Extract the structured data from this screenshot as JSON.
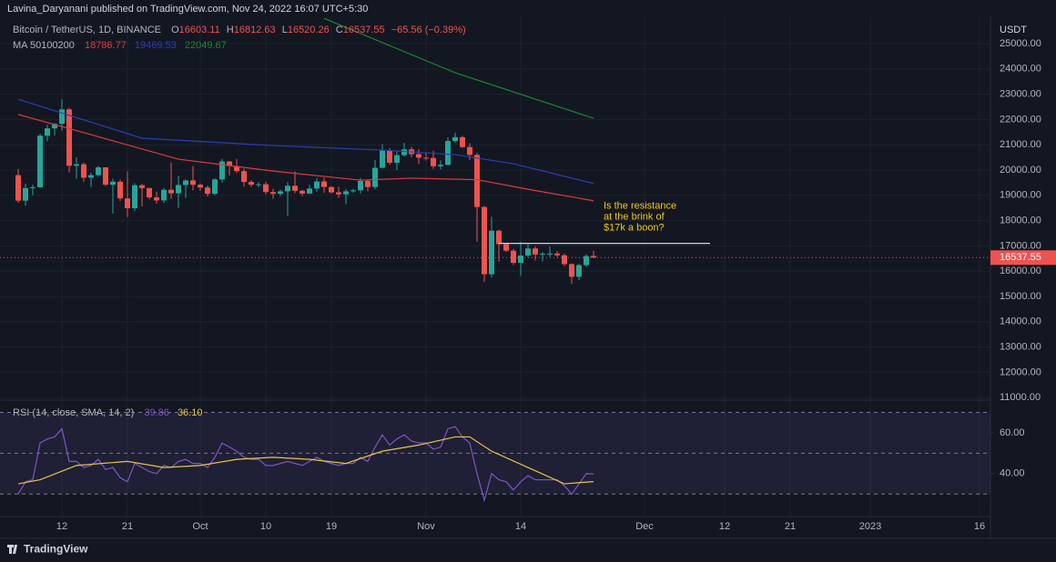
{
  "header": {
    "published": "Lavina_Daryanani published on TradingView.com, Nov 24, 2022 16:07 UTC+5:30"
  },
  "footer": {
    "brand": "TradingView"
  },
  "chart_data": [
    {
      "type": "candlestick",
      "title": "Bitcoin / TetherUS, 1D, BINANCE",
      "ohlc_labels": [
        "O",
        "H",
        "L",
        "C"
      ],
      "change": "−65.56 (−0.39%)",
      "axis_unit": "USDT",
      "up_color": "#26a69a",
      "down_color": "#ef5350",
      "x": [
        0,
        1,
        2,
        3,
        4,
        5,
        6,
        7,
        8,
        9,
        10,
        11,
        12,
        13,
        14,
        15,
        16,
        17,
        18,
        19,
        20,
        21,
        22,
        23,
        24,
        25,
        26,
        27,
        28,
        29,
        30,
        31,
        32,
        33,
        34,
        35,
        36,
        37,
        38,
        39,
        40,
        41,
        42,
        43,
        44,
        45,
        46,
        47,
        48,
        49,
        50,
        51,
        52,
        53,
        54,
        55,
        56,
        57,
        58,
        59,
        60,
        61,
        62,
        63,
        64,
        65,
        66,
        67,
        68,
        69,
        70,
        71,
        72,
        73,
        74,
        75,
        76,
        77,
        78,
        79
      ],
      "open": [
        19800,
        18790,
        19290,
        19320,
        21360,
        21650,
        21830,
        22400,
        20170,
        20230,
        19700,
        19800,
        20110,
        19420,
        19540,
        18880,
        18490,
        19400,
        19290,
        18920,
        18800,
        19220,
        19080,
        19410,
        19590,
        19420,
        19310,
        19060,
        19630,
        20340,
        20160,
        19960,
        19530,
        19420,
        19440,
        19130,
        19060,
        19160,
        19380,
        19180,
        19070,
        19270,
        19550,
        19330,
        19120,
        19040,
        19160,
        19200,
        19570,
        19330,
        20090,
        20770,
        20290,
        20590,
        20820,
        20630,
        20490,
        20480,
        20150,
        20210,
        21150,
        21300,
        20910,
        20600,
        18540,
        15880,
        17600,
        17070,
        16810,
        16330,
        16620,
        16900,
        16660,
        16690,
        16700,
        16630,
        16280,
        15780,
        16240,
        16603.11
      ],
      "high": [
        20050,
        19460,
        19420,
        21440,
        21790,
        21860,
        22800,
        22470,
        20510,
        20300,
        19890,
        20160,
        20110,
        19660,
        19620,
        19950,
        19480,
        19460,
        19290,
        19150,
        19290,
        20300,
        19770,
        19630,
        20160,
        19470,
        19390,
        19680,
        20450,
        20360,
        20440,
        20060,
        19600,
        19520,
        19530,
        19260,
        19230,
        19520,
        19950,
        19220,
        19420,
        19690,
        19700,
        19360,
        19350,
        19250,
        19260,
        19690,
        19600,
        20400,
        21020,
        20870,
        20750,
        21080,
        20920,
        20830,
        20670,
        20770,
        20380,
        21290,
        21480,
        21360,
        21060,
        20680,
        18580,
        18150,
        17650,
        17070,
        16880,
        17170,
        17120,
        16990,
        16760,
        16980,
        16800,
        16700,
        16310,
        16290,
        16670,
        16812.63
      ],
      "low": [
        18700,
        18590,
        19000,
        19300,
        21140,
        21360,
        21560,
        19900,
        19660,
        19530,
        19330,
        19740,
        19370,
        18280,
        18780,
        18140,
        18380,
        18560,
        18840,
        18670,
        18700,
        18860,
        18490,
        18900,
        19200,
        19180,
        18950,
        19000,
        19500,
        19790,
        19870,
        19350,
        19330,
        19320,
        19040,
        18860,
        18970,
        18190,
        19090,
        18970,
        19070,
        19140,
        19100,
        19070,
        18900,
        18650,
        19100,
        19080,
        19160,
        19240,
        20060,
        20210,
        20000,
        20540,
        20510,
        20250,
        20380,
        20050,
        20030,
        20180,
        21080,
        20880,
        20400,
        17170,
        15580,
        15750,
        16380,
        16760,
        16250,
        15820,
        16560,
        16420,
        16390,
        16570,
        16560,
        16200,
        15500,
        15650,
        16170,
        16520.26
      ],
      "close": [
        18790,
        19290,
        19320,
        21360,
        21650,
        21830,
        22400,
        20170,
        20230,
        19700,
        19800,
        20110,
        19420,
        19540,
        18880,
        18490,
        19400,
        19290,
        18920,
        18800,
        19220,
        19080,
        19410,
        19590,
        19420,
        19310,
        19060,
        19630,
        20340,
        20160,
        19960,
        19530,
        19420,
        19440,
        19130,
        19060,
        19160,
        19380,
        19180,
        19070,
        19270,
        19550,
        19330,
        19120,
        19040,
        19160,
        19200,
        19570,
        19330,
        20090,
        20770,
        20290,
        20590,
        20820,
        20630,
        20490,
        20480,
        20150,
        20210,
        21150,
        21300,
        20910,
        20600,
        18540,
        15880,
        17600,
        17070,
        16810,
        16330,
        16620,
        16900,
        16660,
        16690,
        16700,
        16630,
        16280,
        15780,
        16240,
        16600,
        16537.55
      ],
      "overlay_label": "MA 50100200",
      "overlays": [
        {
          "color": "#e03a3e",
          "x": [
            0,
            10,
            22,
            35,
            47,
            54,
            63,
            70,
            79
          ],
          "values": [
            22200,
            21400,
            20430,
            19960,
            19600,
            19680,
            19620,
            19240,
            18786.77
          ]
        },
        {
          "color": "#2a3fb8",
          "x": [
            0,
            17,
            35,
            50,
            60,
            68,
            79
          ],
          "values": [
            22800,
            21260,
            20970,
            20790,
            20610,
            20250,
            19469.53
          ]
        },
        {
          "color": "#1b8a2e",
          "x": [
            42,
            60,
            79
          ],
          "values": [
            26000,
            23850,
            22049.67
          ]
        }
      ],
      "annotation": {
        "text": [
          "Is the resistance",
          "at the brink of",
          "$17k a boon?"
        ],
        "level": 17100,
        "x_range": [
          66,
          95
        ],
        "color": "#f5c518"
      },
      "xlim": [
        -1.5,
        133.5
      ],
      "xticks": [
        {
          "value": 6,
          "label": "12"
        },
        {
          "value": 15,
          "label": "21"
        },
        {
          "value": 25,
          "label": "Oct"
        },
        {
          "value": 34,
          "label": "10"
        },
        {
          "value": 43,
          "label": "19"
        },
        {
          "value": 56,
          "label": "Nov"
        },
        {
          "value": 69,
          "label": "14"
        },
        {
          "value": 86,
          "label": "Dec"
        },
        {
          "value": 97,
          "label": "12"
        },
        {
          "value": 106,
          "label": "21"
        },
        {
          "value": 117,
          "label": "2023"
        },
        {
          "value": 132,
          "label": "16"
        }
      ],
      "ylim": [
        10900,
        26080
      ],
      "yticks": [
        {
          "value": 11000,
          "label": "11000.00"
        },
        {
          "value": 12000,
          "label": "12000.00"
        },
        {
          "value": 13000,
          "label": "13000.00"
        },
        {
          "value": 14000,
          "label": "14000.00"
        },
        {
          "value": 15000,
          "label": "15000.00"
        },
        {
          "value": 16000,
          "label": "16000.00"
        },
        {
          "value": 17000,
          "label": "17000.00"
        },
        {
          "value": 18000,
          "label": "18000.00"
        },
        {
          "value": 19000,
          "label": "19000.00"
        },
        {
          "value": 20000,
          "label": "20000.00"
        },
        {
          "value": 21000,
          "label": "21000.00"
        },
        {
          "value": 22000,
          "label": "22000.00"
        },
        {
          "value": 23000,
          "label": "23000.00"
        },
        {
          "value": 24000,
          "label": "24000.00"
        },
        {
          "value": 25000,
          "label": "25000.00"
        }
      ],
      "grid": true
    },
    {
      "type": "line",
      "title": "RSI (14, close, SMA, 14, 2)",
      "series": [
        {
          "color": "#7e57c2",
          "x": [
            0,
            1,
            2,
            3,
            4,
            5,
            6,
            7,
            8,
            9,
            10,
            11,
            12,
            13,
            14,
            15,
            16,
            17,
            18,
            19,
            20,
            21,
            22,
            23,
            24,
            25,
            26,
            27,
            28,
            29,
            30,
            31,
            32,
            33,
            34,
            35,
            36,
            37,
            38,
            39,
            40,
            41,
            42,
            43,
            44,
            45,
            46,
            47,
            48,
            49,
            50,
            51,
            52,
            53,
            54,
            55,
            56,
            57,
            58,
            59,
            60,
            61,
            62,
            63,
            64,
            65,
            66,
            67,
            68,
            69,
            70,
            71,
            72,
            73,
            74,
            75,
            76,
            77,
            78,
            79
          ],
          "values": [
            30,
            36,
            37,
            55,
            57,
            58,
            62,
            46,
            46,
            43,
            44,
            47,
            42,
            43,
            38,
            36,
            45,
            43,
            41,
            40,
            44,
            43,
            46,
            47,
            45,
            45,
            43,
            48,
            55,
            53,
            51,
            48,
            47,
            47,
            44,
            44,
            45,
            46,
            45,
            44,
            46,
            48,
            46,
            45,
            44,
            45,
            45,
            48,
            46,
            53,
            59,
            54,
            57,
            59,
            56,
            55,
            55,
            52,
            53,
            62,
            63,
            58,
            55,
            40,
            27,
            40,
            37,
            36,
            32,
            36,
            39,
            37,
            37,
            37,
            37,
            34,
            30,
            35,
            40,
            39.86
          ]
        },
        {
          "color": "#e8c547",
          "x": [
            0,
            3,
            8,
            15,
            20,
            25,
            30,
            35,
            40,
            45,
            50,
            55,
            60,
            62,
            65,
            70,
            75,
            77,
            79
          ],
          "values": [
            35,
            37,
            44,
            46,
            43,
            44,
            47,
            48,
            47,
            45,
            51,
            54,
            58,
            58,
            51,
            43,
            35,
            35.6,
            36.1
          ],
          "value_labels": [
            null,
            null,
            null,
            null,
            null,
            null,
            null,
            null,
            null,
            null,
            null,
            null,
            null,
            null,
            null,
            null,
            null,
            null,
            "36.10"
          ]
        }
      ],
      "bands": [
        70,
        50,
        30
      ],
      "ylim": [
        19,
        76
      ],
      "yticks": [
        {
          "value": 60,
          "label": "60.00"
        },
        {
          "value": 40,
          "label": "40.00"
        }
      ]
    }
  ]
}
